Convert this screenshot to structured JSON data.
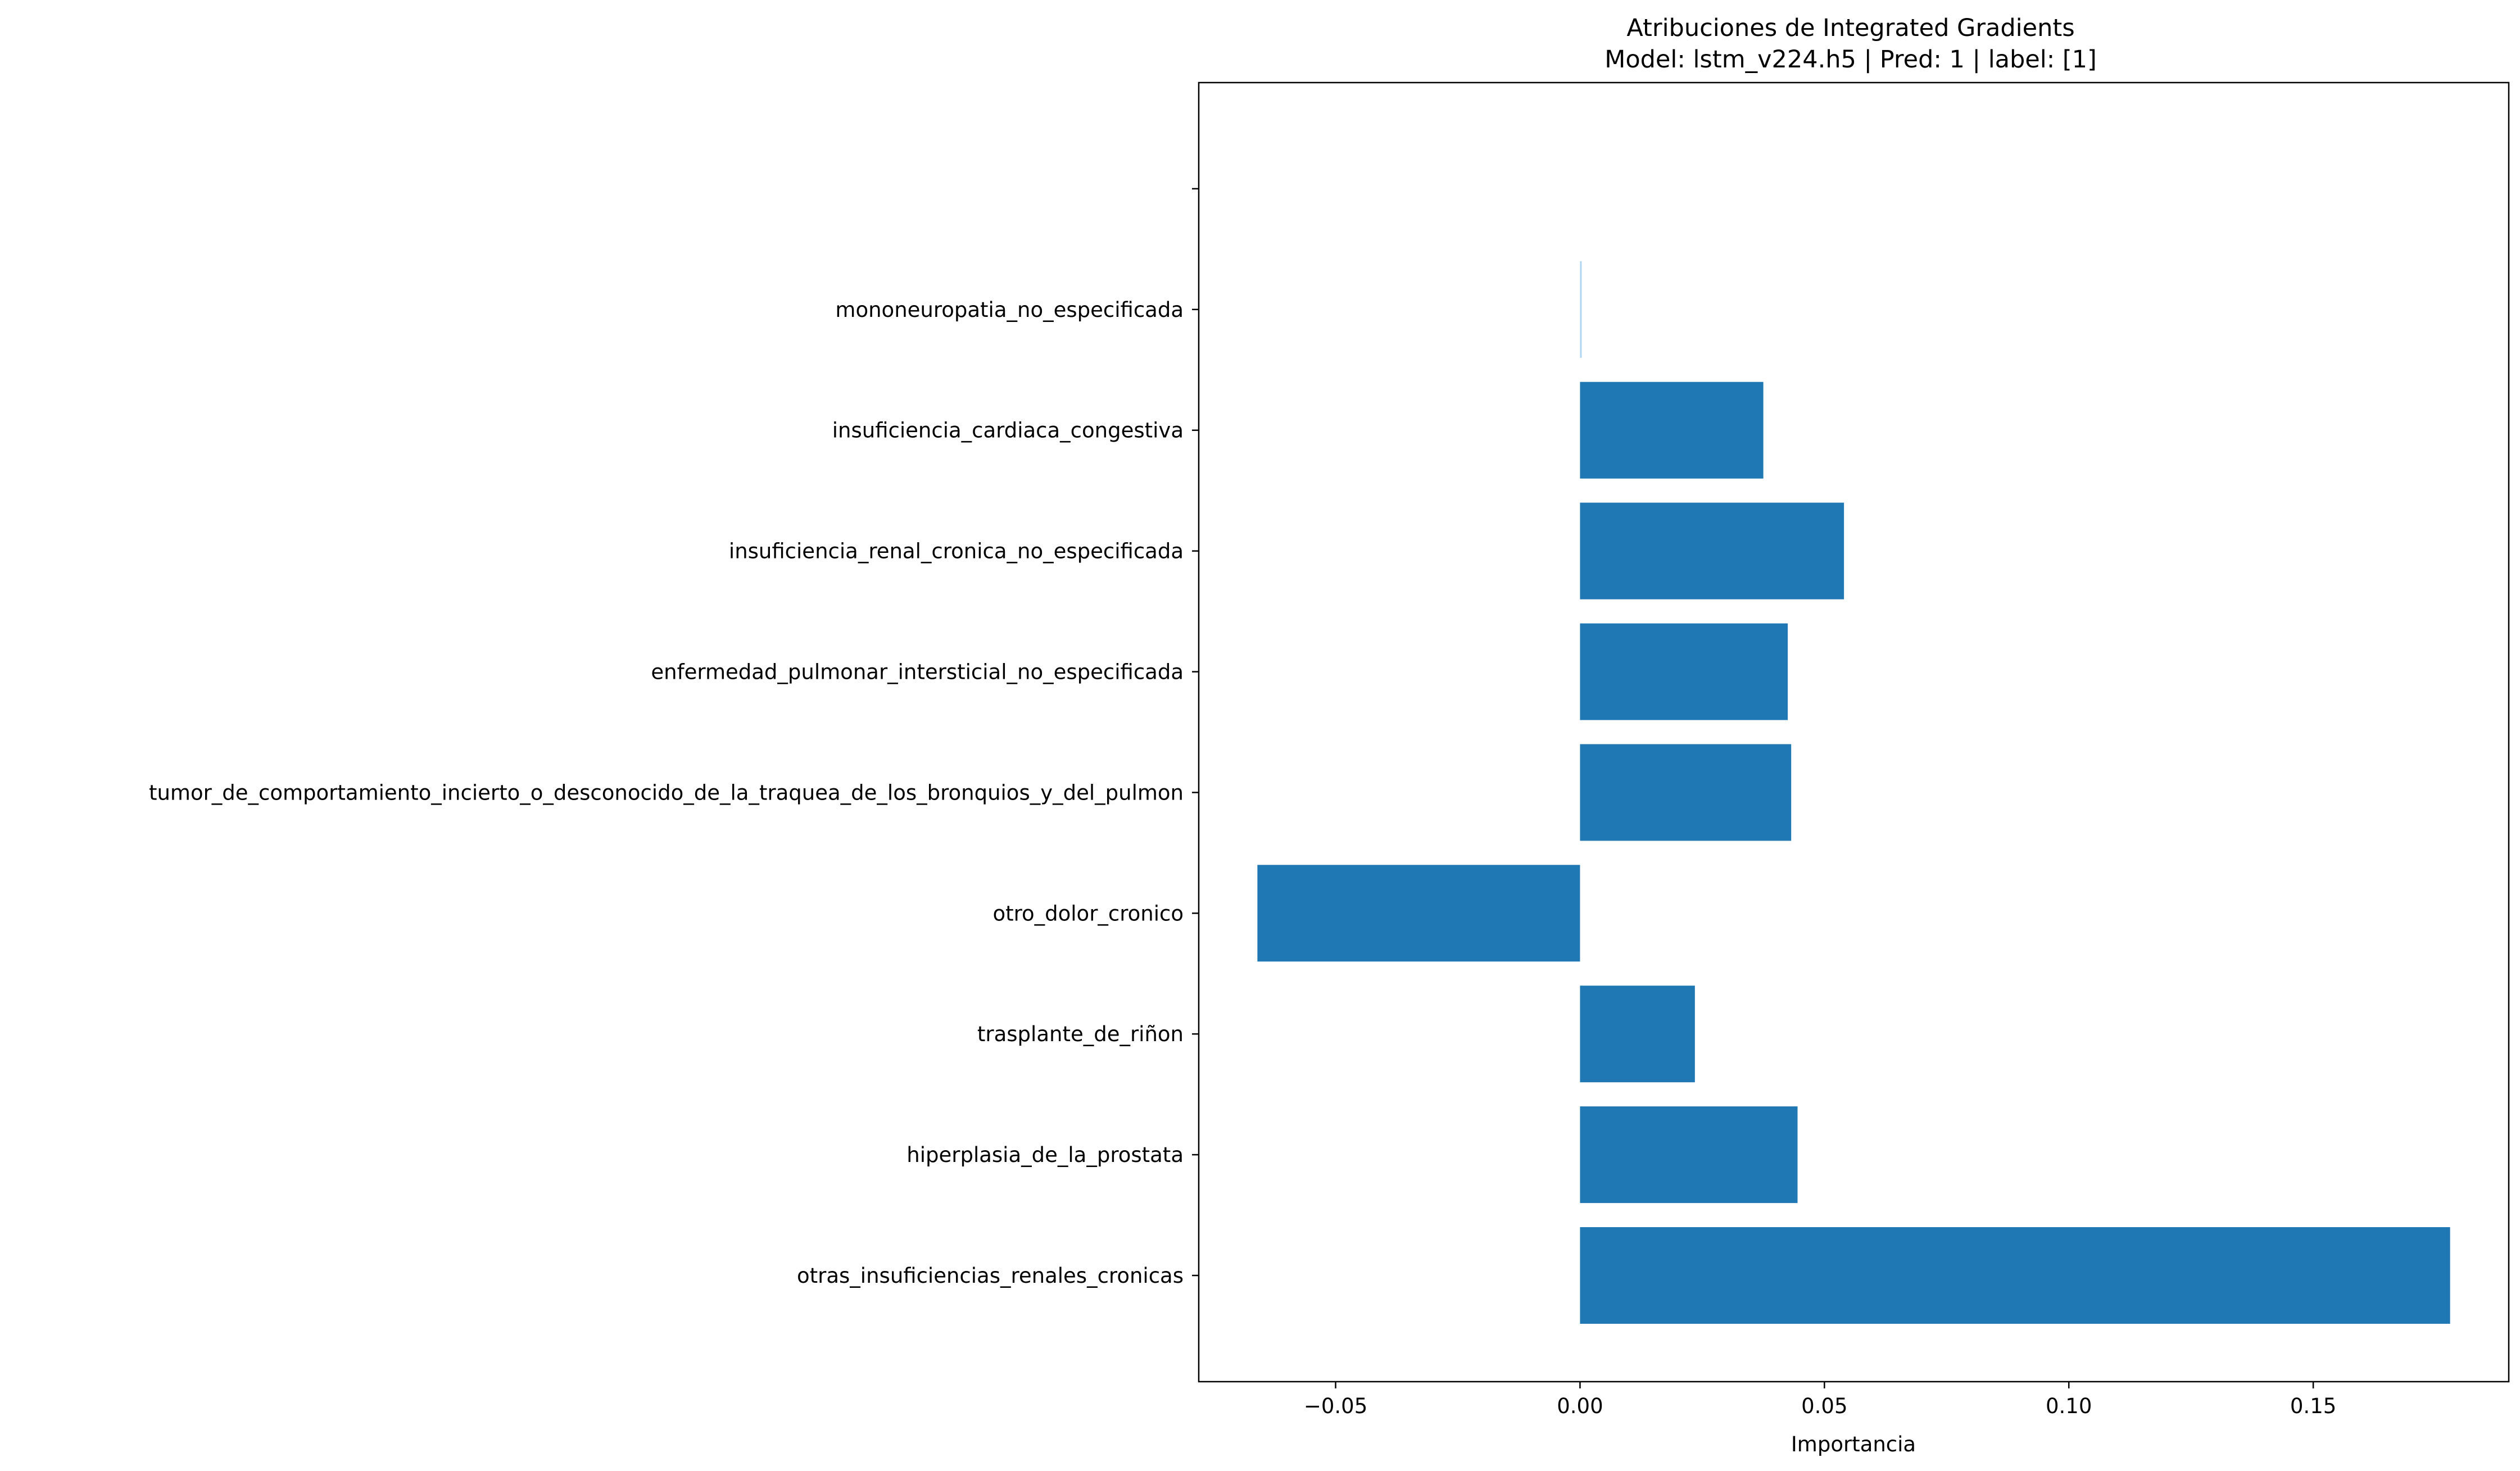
{
  "chart_data": {
    "type": "bar",
    "orientation": "horizontal",
    "title": "Atribuciones de Integrated Gradients",
    "subtitle": "Model: lstm_v224.h5 | Pred: 1 | label: [1]",
    "xlabel": "Importancia",
    "ylabel": "",
    "xlim": [
      -0.078,
      0.19
    ],
    "xticks": [
      -0.05,
      0.0,
      0.05,
      0.1,
      0.15
    ],
    "xtick_labels": [
      "−0.05",
      "0.00",
      "0.05",
      "0.10",
      "0.15"
    ],
    "categories": [
      "otras_insuficiencias_renales_cronicas",
      "hiperplasia_de_la_prostata",
      "trasplante_de_riñon",
      "otro_dolor_cronico",
      "tumor_de_comportamiento_incierto_o_desconocido_de_la_traquea_de_los_bronquios_y_del_pulmon",
      "enfermedad_pulmonar_intersticial_no_especificada",
      "insuficiencia_renal_cronica_no_especificada",
      "insuficiencia_cardiaca_congestiva",
      "mononeuropatia_no_especificada",
      ""
    ],
    "values": [
      0.178,
      0.0445,
      0.0235,
      -0.066,
      0.0432,
      0.0425,
      0.054,
      0.0375,
      0.0003,
      0
    ],
    "bar_color": "#1f77b4",
    "highlight_color": "#aed6f1",
    "grid": false
  }
}
